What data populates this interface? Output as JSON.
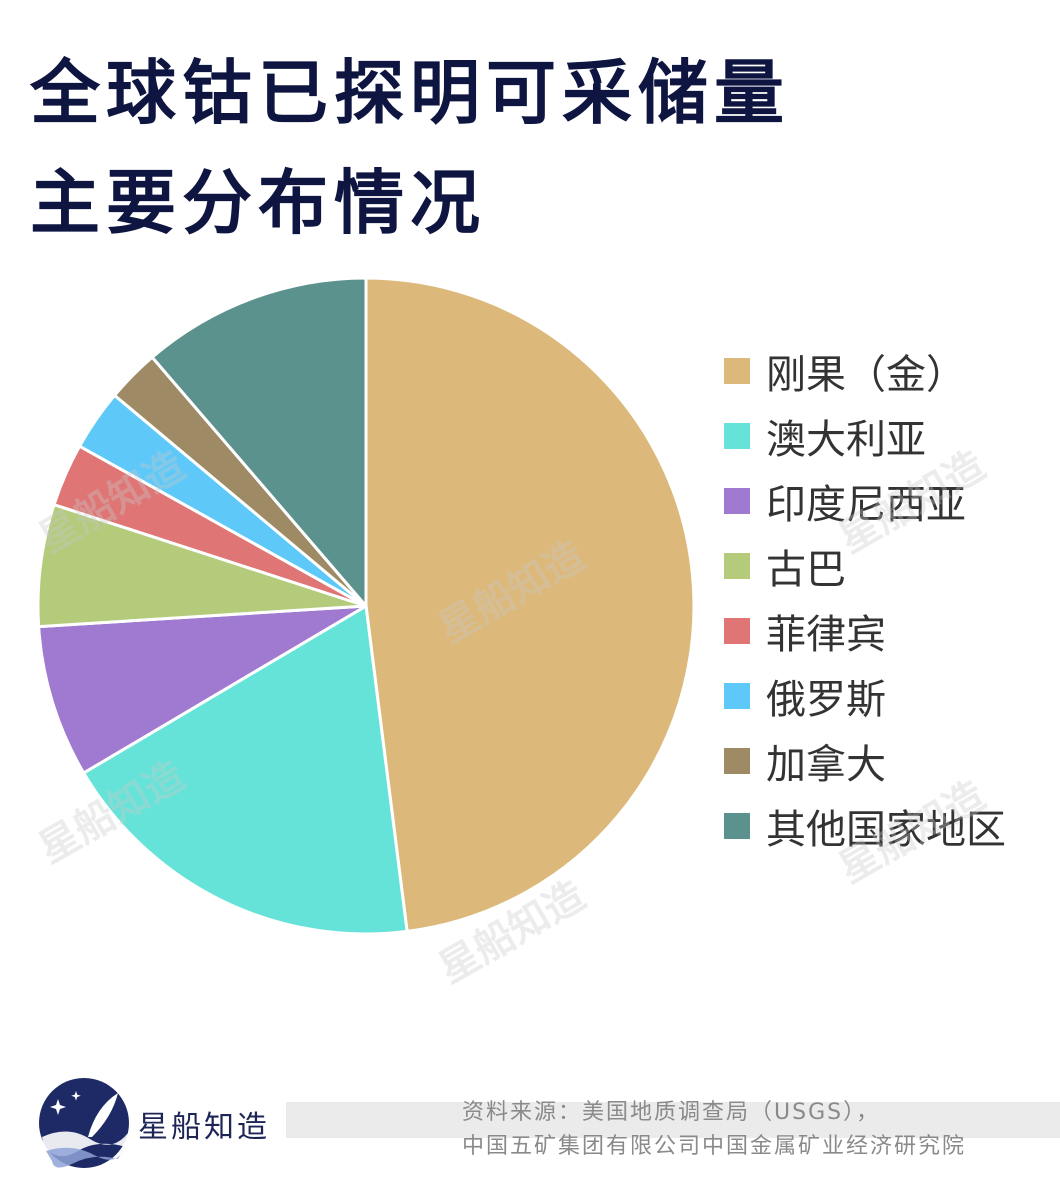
{
  "header": {
    "title_line1": "全球钴已探明可采储量",
    "title_line2": "主要分布情况"
  },
  "chart_data": {
    "type": "pie",
    "categories": [
      "刚果（金）",
      "澳大利亚",
      "印度尼西亚",
      "古巴",
      "菲律宾",
      "俄罗斯",
      "加拿大",
      "其他国家地区"
    ],
    "values": [
      48,
      18.5,
      7.5,
      6.0,
      3.1,
      3.0,
      2.6,
      11.3
    ],
    "colors": [
      "#dcb97a",
      "#66e3d8",
      "#a07ad0",
      "#b3cb7b",
      "#df7575",
      "#5ec9f8",
      "#9e8b66",
      "#5b928d"
    ],
    "legend_position": "right"
  },
  "watermark": {
    "text": "星船知造"
  },
  "footer": {
    "brand": "星船知造",
    "source_line1": "资料来源：美国地质调查局（USGS），",
    "source_line2": "中国五矿集团有限公司中国金属矿业经济研究院",
    "logo_icon": "quill-moon-logo-icon"
  }
}
